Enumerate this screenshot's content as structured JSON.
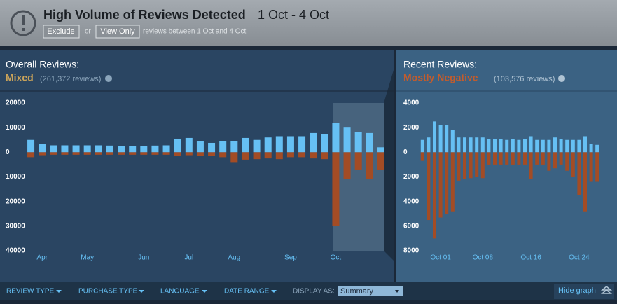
{
  "banner": {
    "title": "High Volume of Reviews Detected",
    "range": "1 Oct - 4 Oct",
    "exclude": "Exclude",
    "or": "or",
    "view_only": "View Only",
    "note": "reviews between 1 Oct and 4 Oct"
  },
  "overall": {
    "label": "Overall Reviews:",
    "rating": "Mixed",
    "count": "(261,372 reviews)"
  },
  "recent": {
    "label": "Recent Reviews:",
    "rating": "Mostly Negative",
    "count": "(103,576 reviews)"
  },
  "filters": {
    "review_type": "REVIEW TYPE",
    "purchase_type": "PURCHASE TYPE",
    "language": "LANGUAGE",
    "date_range": "DATE RANGE",
    "display_as": "DISPLAY AS:",
    "display_value": "Summary",
    "hide_graph": "Hide graph"
  },
  "chart_data": [
    {
      "type": "bar",
      "categories": [
        null,
        "Apr",
        null,
        null,
        null,
        "May",
        null,
        null,
        null,
        null,
        "Jun",
        null,
        null,
        null,
        "Jul",
        null,
        null,
        null,
        "Aug",
        null,
        null,
        null,
        null,
        "Sep",
        null,
        null,
        null,
        "Oct",
        null,
        null,
        null,
        null
      ],
      "series": [
        {
          "color": "#66c0f4",
          "values": [
            5000,
            3500,
            2800,
            2800,
            2800,
            2800,
            2800,
            2700,
            2600,
            2500,
            2500,
            2700,
            2800,
            5500,
            5800,
            4500,
            3800,
            4500,
            4500,
            5800,
            5000,
            6000,
            6500,
            6500,
            6500,
            7800,
            7300,
            12000,
            10000,
            8200,
            7800,
            2000
          ]
        },
        {
          "color": "#a34c25",
          "values": [
            -2000,
            -1200,
            -1000,
            -1000,
            -1000,
            -1000,
            -1000,
            -1000,
            -1000,
            -1000,
            -1000,
            -1000,
            -1000,
            -1500,
            -1200,
            -1500,
            -1500,
            -2000,
            -4000,
            -3000,
            -2800,
            -2500,
            -2800,
            -2000,
            -2000,
            -2500,
            -2800,
            -30000,
            -11000,
            -7000,
            -11000,
            -7000
          ]
        }
      ],
      "ylim": [
        -40000,
        20000
      ],
      "yticks": [
        20000,
        10000,
        0,
        {
          "value": -10000,
          "label": "10000"
        },
        {
          "value": -20000,
          "label": "20000"
        },
        {
          "value": -30000,
          "label": "30000"
        },
        {
          "value": -40000,
          "label": "40000"
        }
      ]
    },
    {
      "type": "bar",
      "categories": [
        null,
        null,
        null,
        "Oct 01",
        null,
        null,
        null,
        null,
        null,
        null,
        "Oct 08",
        null,
        null,
        null,
        null,
        null,
        null,
        null,
        "Oct 16",
        null,
        null,
        null,
        null,
        null,
        null,
        null,
        "Oct 24",
        null,
        null,
        null
      ],
      "series": [
        {
          "color": "#66c0f4",
          "values": [
            1000,
            1200,
            2500,
            2200,
            2200,
            1800,
            1200,
            1200,
            1200,
            1200,
            1200,
            1100,
            1100,
            1100,
            1000,
            1100,
            1000,
            1100,
            1300,
            1000,
            1000,
            1000,
            1200,
            1100,
            1000,
            1000,
            1000,
            1300,
            700,
            600
          ]
        },
        {
          "color": "#a34c25",
          "values": [
            -700,
            -5500,
            -7000,
            -5300,
            -5000,
            -4800,
            -2300,
            -2200,
            -2100,
            -2000,
            -2100,
            -1000,
            -1000,
            -1000,
            -1000,
            -1000,
            -1000,
            -1000,
            -2200,
            -1000,
            -1000,
            -1500,
            -1300,
            -1000,
            -1500,
            -2000,
            -3500,
            -4800,
            -2400,
            -2400
          ]
        }
      ],
      "ylim": [
        -8000,
        4000
      ],
      "yticks": [
        4000,
        2000,
        0,
        {
          "value": -2000,
          "label": "2000"
        },
        {
          "value": -4000,
          "label": "4000"
        },
        {
          "value": -6000,
          "label": "6000"
        },
        {
          "value": -8000,
          "label": "8000"
        }
      ]
    }
  ]
}
